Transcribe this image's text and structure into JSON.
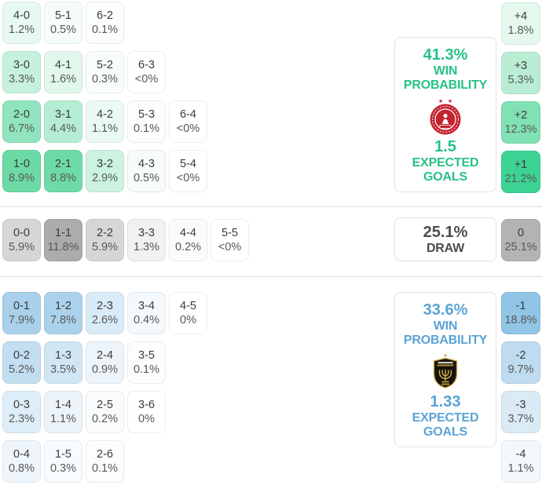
{
  "chart_data": {
    "type": "heatmap",
    "description": "Football match correct-score probability matrix with goal-difference badges, win probabilities and expected goals",
    "home": {
      "accent": "#27c185",
      "win_pct": "41.3%",
      "win_label_1": "WIN",
      "win_label_2": "PROBABILITY",
      "xg": "1.5",
      "xg_label_1": "EXPECTED",
      "xg_label_2": "GOALS",
      "crest": "hapoel-tel-aviv-crest",
      "score_rows": [
        [
          {
            "score": "4-0",
            "pct": "1.2%",
            "bg": "#e8f9f1"
          },
          {
            "score": "5-1",
            "pct": "0.5%",
            "bg": "#f5fcf9"
          },
          {
            "score": "6-2",
            "pct": "0.1%",
            "bg": "#fbfefd"
          }
        ],
        [
          {
            "score": "3-0",
            "pct": "3.3%",
            "bg": "#c6f1dd"
          },
          {
            "score": "4-1",
            "pct": "1.6%",
            "bg": "#e2f7ec"
          },
          {
            "score": "5-2",
            "pct": "0.3%",
            "bg": "#f8fdfb"
          },
          {
            "score": "6-3",
            "pct": "<0%",
            "bg": "#ffffff"
          }
        ],
        [
          {
            "score": "2-0",
            "pct": "6.7%",
            "bg": "#90e5be"
          },
          {
            "score": "3-1",
            "pct": "4.4%",
            "bg": "#b4edd3"
          },
          {
            "score": "4-2",
            "pct": "1.1%",
            "bg": "#eafaf3"
          },
          {
            "score": "5-3",
            "pct": "0.1%",
            "bg": "#fbfefd"
          },
          {
            "score": "6-4",
            "pct": "<0%",
            "bg": "#ffffff"
          }
        ],
        [
          {
            "score": "1-0",
            "pct": "8.9%",
            "bg": "#6cdaa5"
          },
          {
            "score": "2-1",
            "pct": "8.8%",
            "bg": "#6edba7"
          },
          {
            "score": "3-2",
            "pct": "2.9%",
            "bg": "#cbf3e0"
          },
          {
            "score": "4-3",
            "pct": "0.5%",
            "bg": "#f5fcf9"
          },
          {
            "score": "5-4",
            "pct": "<0%",
            "bg": "#ffffff"
          }
        ]
      ],
      "diff_badges": [
        {
          "diff": "+4",
          "pct": "1.8%",
          "bg": "#e4f8ee"
        },
        {
          "diff": "+3",
          "pct": "5.3%",
          "bg": "#b9eed4"
        },
        {
          "diff": "+2",
          "pct": "12.3%",
          "bg": "#7fe1b4"
        },
        {
          "diff": "+1",
          "pct": "21.2%",
          "bg": "#3cd394"
        }
      ]
    },
    "draw": {
      "pct": "25.1%",
      "label": "DRAW",
      "score_row": [
        {
          "score": "0-0",
          "pct": "5.9%",
          "bg": "#d6d6d6"
        },
        {
          "score": "1-1",
          "pct": "11.8%",
          "bg": "#acacac"
        },
        {
          "score": "2-2",
          "pct": "5.9%",
          "bg": "#d6d6d6"
        },
        {
          "score": "3-3",
          "pct": "1.3%",
          "bg": "#f1f1f1"
        },
        {
          "score": "4-4",
          "pct": "0.2%",
          "bg": "#fbfbfb"
        },
        {
          "score": "5-5",
          "pct": "<0%",
          "bg": "#ffffff"
        }
      ],
      "badge": {
        "diff": "0",
        "pct": "25.1%",
        "bg": "#b3b3b3"
      }
    },
    "away": {
      "accent": "#5ba3d4",
      "win_pct": "33.6%",
      "win_label_1": "WIN",
      "win_label_2": "PROBABILITY",
      "xg": "1.33",
      "xg_label_1": "EXPECTED",
      "xg_label_2": "GOALS",
      "crest": "beitar-jerusalem-crest",
      "score_rows": [
        [
          {
            "score": "0-1",
            "pct": "7.9%",
            "bg": "#a9d1eb"
          },
          {
            "score": "1-2",
            "pct": "7.8%",
            "bg": "#abd2ec"
          },
          {
            "score": "2-3",
            "pct": "2.6%",
            "bg": "#d9ebf6"
          },
          {
            "score": "3-4",
            "pct": "0.4%",
            "bg": "#f4f9fd"
          },
          {
            "score": "4-5",
            "pct": "0%",
            "bg": "#ffffff"
          }
        ],
        [
          {
            "score": "0-2",
            "pct": "5.2%",
            "bg": "#c3def1"
          },
          {
            "score": "1-3",
            "pct": "3.5%",
            "bg": "#d1e6f4"
          },
          {
            "score": "2-4",
            "pct": "0.9%",
            "bg": "#edf5fa"
          },
          {
            "score": "3-5",
            "pct": "0.1%",
            "bg": "#fbfdfe"
          }
        ],
        [
          {
            "score": "0-3",
            "pct": "2.3%",
            "bg": "#deeef8"
          },
          {
            "score": "1-4",
            "pct": "1.1%",
            "bg": "#ecf4fa"
          },
          {
            "score": "2-5",
            "pct": "0.2%",
            "bg": "#f9fbfd"
          },
          {
            "score": "3-6",
            "pct": "0%",
            "bg": "#ffffff"
          }
        ],
        [
          {
            "score": "0-4",
            "pct": "0.8%",
            "bg": "#eff6fb"
          },
          {
            "score": "1-5",
            "pct": "0.3%",
            "bg": "#f8fbfd"
          },
          {
            "score": "2-6",
            "pct": "0.1%",
            "bg": "#fbfdfe"
          }
        ]
      ],
      "diff_badges": [
        {
          "diff": "-1",
          "pct": "18.8%",
          "bg": "#90c5e6"
        },
        {
          "diff": "-2",
          "pct": "9.7%",
          "bg": "#bedbf0"
        },
        {
          "diff": "-3",
          "pct": "3.7%",
          "bg": "#daebf6"
        },
        {
          "diff": "-4",
          "pct": "1.1%",
          "bg": "#f2f8fc"
        }
      ]
    }
  }
}
